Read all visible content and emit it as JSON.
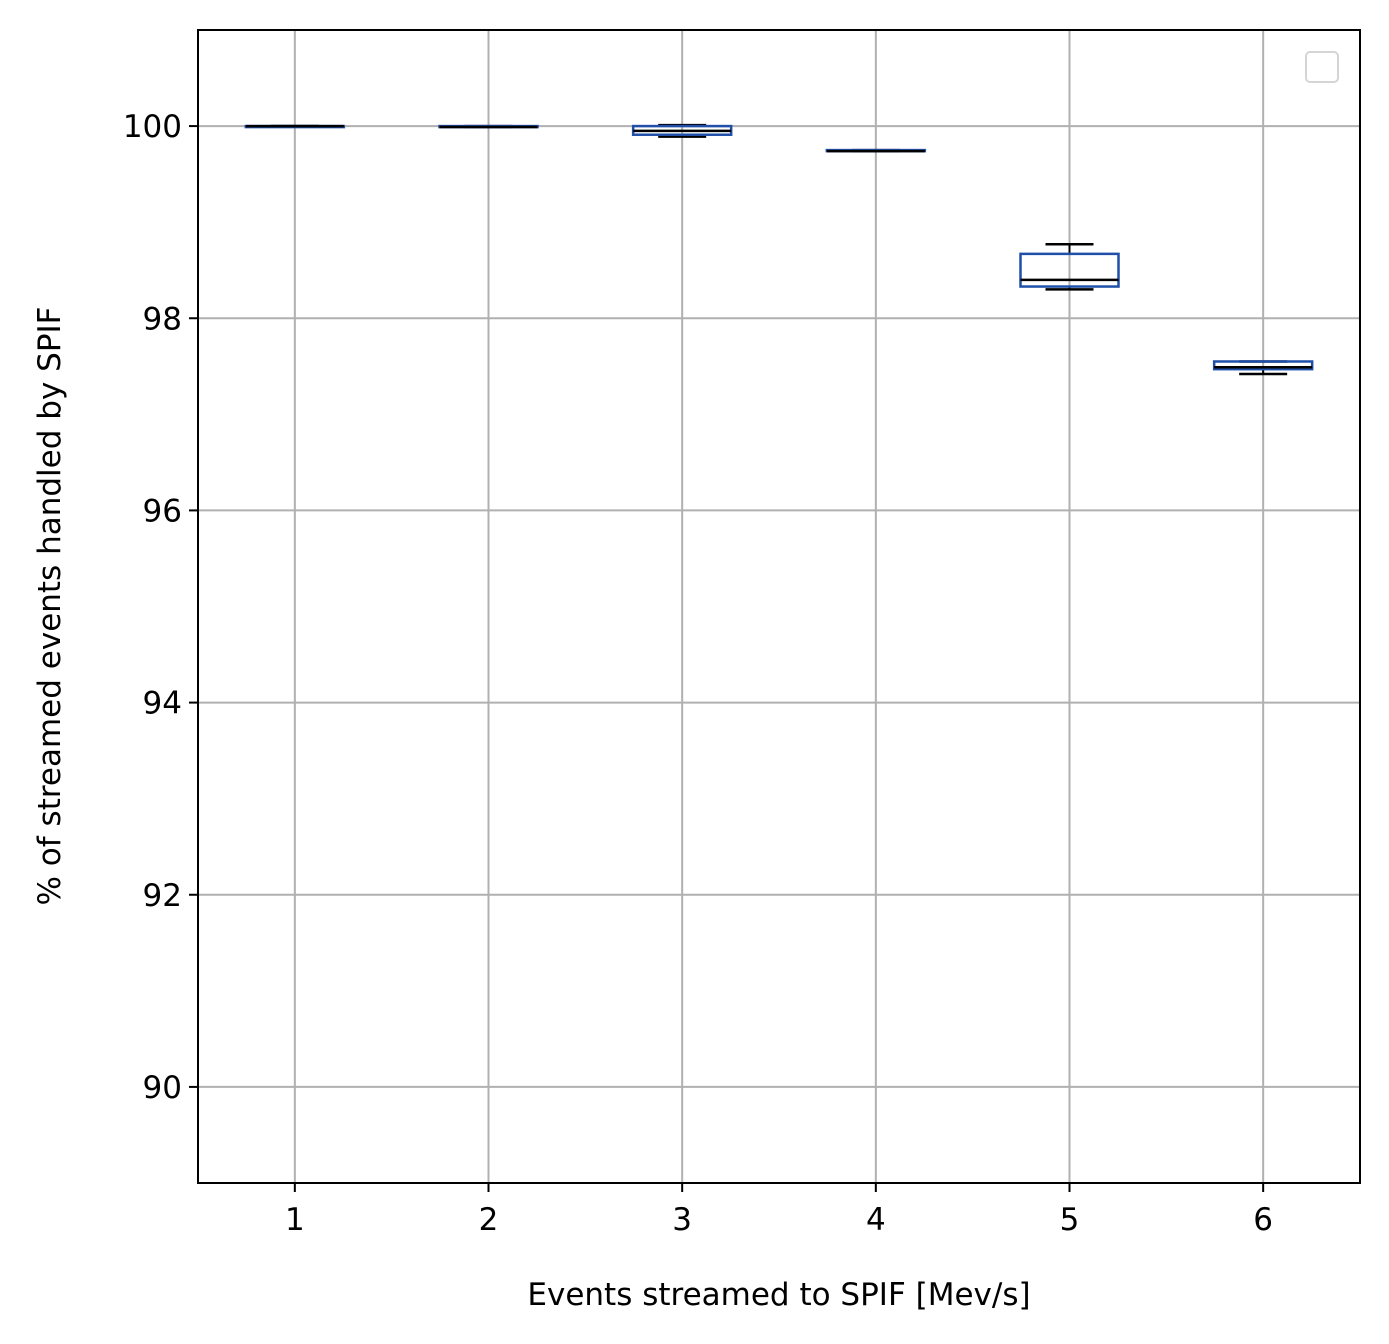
{
  "chart_data": {
    "type": "box",
    "title": "",
    "xlabel": "Events streamed to SPIF [Mev/s]",
    "ylabel": "% of streamed events handled by SPIF",
    "categories": [
      "1",
      "2",
      "3",
      "4",
      "5",
      "6"
    ],
    "ylim": [
      89,
      101
    ],
    "yticks": [
      90,
      92,
      94,
      96,
      98,
      100
    ],
    "grid": true,
    "legend": "top-right (empty)",
    "colors": {
      "box": "#1f4fa8",
      "median": "#000000",
      "whisker": "#000000",
      "grid": "#b0b0b0"
    },
    "boxes": [
      {
        "category": "1",
        "min": 100.0,
        "q1": 100.0,
        "median": 100.0,
        "q3": 100.0,
        "max": 100.0
      },
      {
        "category": "2",
        "min": 99.99,
        "q1": 99.99,
        "median": 99.99,
        "q3": 100.0,
        "max": 100.0
      },
      {
        "category": "3",
        "min": 99.89,
        "q1": 99.91,
        "median": 99.95,
        "q3": 100.0,
        "max": 100.01
      },
      {
        "category": "4",
        "min": 99.74,
        "q1": 99.74,
        "median": 99.74,
        "q3": 99.75,
        "max": 99.75
      },
      {
        "category": "5",
        "min": 98.3,
        "q1": 98.33,
        "median": 98.4,
        "q3": 98.67,
        "max": 98.77
      },
      {
        "category": "6",
        "min": 97.42,
        "q1": 97.47,
        "median": 97.49,
        "q3": 97.55,
        "max": 97.55
      }
    ]
  }
}
